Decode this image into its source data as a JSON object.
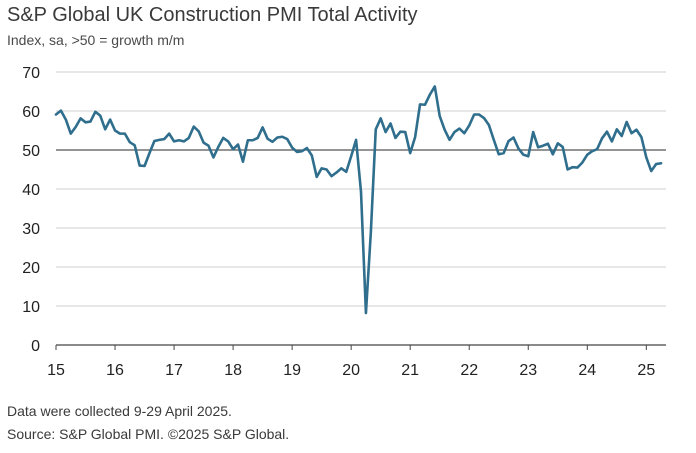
{
  "header": {
    "title": "S&P Global UK Construction PMI Total Activity",
    "subtitle": "Index, sa, >50 = growth m/m"
  },
  "footer": {
    "line1": "Data were collected 9-29 April 2025.",
    "line2": "Source: S&P Global PMI. ©2025 S&P Global."
  },
  "colors": {
    "line": "#2f6e8c",
    "grid": "#cfcfcf",
    "reference": "#555555"
  },
  "chart_data": {
    "type": "line",
    "title": "S&P Global UK Construction PMI Total Activity",
    "subtitle": "Index, sa, >50 = growth m/m",
    "ylim": [
      0,
      70
    ],
    "yticks": [
      0,
      10,
      20,
      30,
      40,
      50,
      60,
      70
    ],
    "xtick_labels": [
      "15",
      "16",
      "17",
      "18",
      "19",
      "20",
      "21",
      "22",
      "23",
      "24",
      "25"
    ],
    "xlim": [
      "2015-01",
      "2025-05"
    ],
    "reference_line": 50,
    "grid": "horizontal",
    "series": [
      {
        "x": [
          "2015-01",
          "2015-02",
          "2015-03",
          "2015-04",
          "2015-05",
          "2015-06",
          "2015-07",
          "2015-08",
          "2015-09",
          "2015-10",
          "2015-11",
          "2015-12",
          "2016-01",
          "2016-02",
          "2016-03",
          "2016-04",
          "2016-05",
          "2016-06",
          "2016-07",
          "2016-08",
          "2016-09",
          "2016-10",
          "2016-11",
          "2016-12",
          "2017-01",
          "2017-02",
          "2017-03",
          "2017-04",
          "2017-05",
          "2017-06",
          "2017-07",
          "2017-08",
          "2017-09",
          "2017-10",
          "2017-11",
          "2017-12",
          "2018-01",
          "2018-02",
          "2018-03",
          "2018-04",
          "2018-05",
          "2018-06",
          "2018-07",
          "2018-08",
          "2018-09",
          "2018-10",
          "2018-11",
          "2018-12",
          "2019-01",
          "2019-02",
          "2019-03",
          "2019-04",
          "2019-05",
          "2019-06",
          "2019-07",
          "2019-08",
          "2019-09",
          "2019-10",
          "2019-11",
          "2019-12",
          "2020-01",
          "2020-02",
          "2020-03",
          "2020-04",
          "2020-05",
          "2020-06",
          "2020-07",
          "2020-08",
          "2020-09",
          "2020-10",
          "2020-11",
          "2020-12",
          "2021-01",
          "2021-02",
          "2021-03",
          "2021-04",
          "2021-05",
          "2021-06",
          "2021-07",
          "2021-08",
          "2021-09",
          "2021-10",
          "2021-11",
          "2021-12",
          "2022-01",
          "2022-02",
          "2022-03",
          "2022-04",
          "2022-05",
          "2022-06",
          "2022-07",
          "2022-08",
          "2022-09",
          "2022-10",
          "2022-11",
          "2022-12",
          "2023-01",
          "2023-02",
          "2023-03",
          "2023-04",
          "2023-05",
          "2023-06",
          "2023-07",
          "2023-08",
          "2023-09",
          "2023-10",
          "2023-11",
          "2023-12",
          "2024-01",
          "2024-02",
          "2024-03",
          "2024-04",
          "2024-05",
          "2024-06",
          "2024-07",
          "2024-08",
          "2024-09",
          "2024-10",
          "2024-11",
          "2024-12",
          "2025-01",
          "2025-02",
          "2025-03",
          "2025-04"
        ],
        "values": [
          59.1,
          60.1,
          57.8,
          54.2,
          55.9,
          58.1,
          57.1,
          57.3,
          59.8,
          58.8,
          55.3,
          57.8,
          55.0,
          54.2,
          54.2,
          52.0,
          51.2,
          46.0,
          45.9,
          49.2,
          52.3,
          52.6,
          52.8,
          54.2,
          52.2,
          52.5,
          52.2,
          53.1,
          56.0,
          54.8,
          51.9,
          51.1,
          48.1,
          50.8,
          53.1,
          52.2,
          50.2,
          51.4,
          47.0,
          52.5,
          52.5,
          53.1,
          55.8,
          52.9,
          52.1,
          53.2,
          53.4,
          52.8,
          50.6,
          49.5,
          49.7,
          50.5,
          48.6,
          43.1,
          45.3,
          45.0,
          43.3,
          44.2,
          45.3,
          44.4,
          48.4,
          52.6,
          39.3,
          8.2,
          28.9,
          55.3,
          58.1,
          54.6,
          56.8,
          53.1,
          54.7,
          54.6,
          49.2,
          53.3,
          61.7,
          61.6,
          64.2,
          66.3,
          58.7,
          55.2,
          52.6,
          54.6,
          55.5,
          54.3,
          56.3,
          59.1,
          59.1,
          58.2,
          56.4,
          52.6,
          48.9,
          49.2,
          52.3,
          53.2,
          50.4,
          48.8,
          48.4,
          54.6,
          50.7,
          51.1,
          51.6,
          48.9,
          51.7,
          50.8,
          45.0,
          45.6,
          45.5,
          46.8,
          48.8,
          49.7,
          50.2,
          53.0,
          54.7,
          52.2,
          55.3,
          53.6,
          57.2,
          54.3,
          55.2,
          53.3,
          48.1,
          44.6,
          46.4,
          46.6
        ]
      }
    ]
  }
}
